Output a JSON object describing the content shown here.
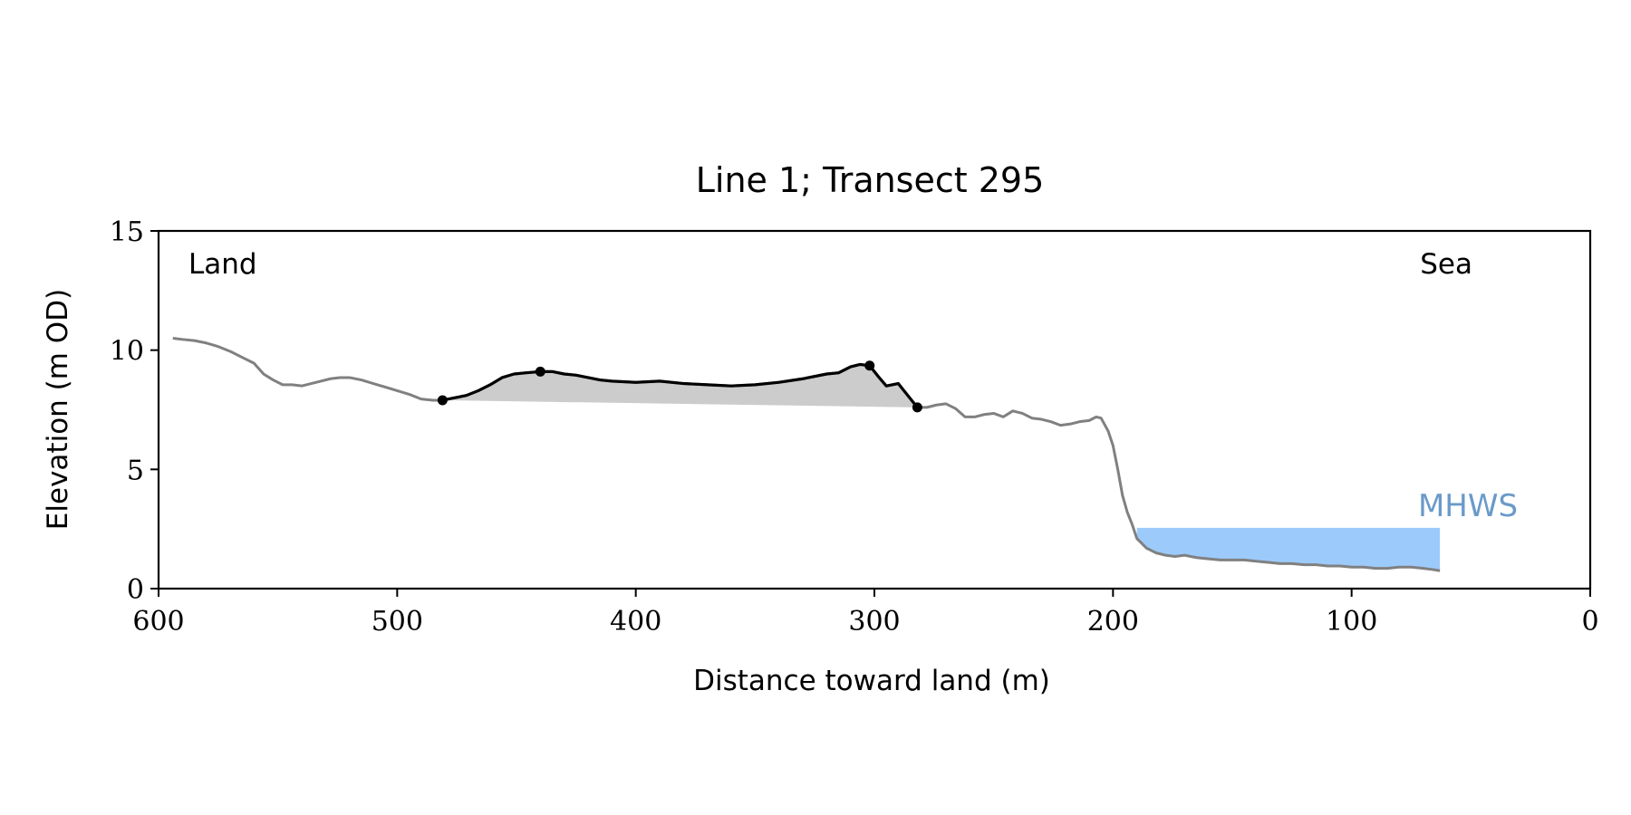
{
  "chart_data": {
    "type": "line",
    "title": "Line 1; Transect 295",
    "xlabel": "Distance toward land (m)",
    "ylabel": "Elevation (m OD)",
    "xlim": [
      600,
      0
    ],
    "ylim": [
      0,
      15
    ],
    "xticks": [
      600,
      500,
      400,
      300,
      200,
      100,
      0
    ],
    "yticks": [
      0,
      5,
      10,
      15
    ],
    "grid": false,
    "annotations": {
      "left": "Land",
      "right": "Sea",
      "mhws": "MHWS"
    },
    "colors": {
      "profile": "#808080",
      "dune": "#000000",
      "dune_fill": "#cccccc",
      "water": "#9ccbfb",
      "mhws_text": "#6a9ac9"
    },
    "mhws": {
      "elevation": 2.55,
      "x_start": 190,
      "x_end": 63
    },
    "dune_markers": [
      [
        481,
        7.9
      ],
      [
        440,
        9.1
      ],
      [
        302,
        9.35
      ],
      [
        282,
        7.6
      ]
    ],
    "profile": {
      "x": [
        594,
        590,
        585,
        580,
        575,
        570,
        565,
        560,
        556,
        552,
        548,
        544,
        540,
        536,
        532,
        528,
        524,
        520,
        515,
        510,
        505,
        500,
        495,
        490,
        485,
        481,
        476,
        471,
        466,
        461,
        456,
        451,
        446,
        440,
        435,
        430,
        425,
        420,
        415,
        410,
        400,
        390,
        380,
        370,
        360,
        350,
        340,
        330,
        320,
        315,
        310,
        306,
        302,
        298,
        295,
        290,
        286,
        282,
        278,
        274,
        270,
        266,
        262,
        258,
        254,
        250,
        246,
        242,
        238,
        234,
        230,
        226,
        222,
        218,
        214,
        210,
        207,
        205,
        202,
        200,
        198,
        196,
        194,
        192,
        190,
        186,
        182,
        178,
        174,
        170,
        165,
        160,
        155,
        150,
        145,
        140,
        135,
        130,
        125,
        120,
        115,
        110,
        105,
        100,
        95,
        90,
        85,
        80,
        75,
        70,
        66,
        63
      ],
      "y": [
        10.5,
        10.45,
        10.4,
        10.3,
        10.15,
        9.95,
        9.7,
        9.45,
        9.0,
        8.75,
        8.55,
        8.55,
        8.5,
        8.6,
        8.7,
        8.8,
        8.85,
        8.85,
        8.75,
        8.6,
        8.45,
        8.3,
        8.15,
        7.95,
        7.9,
        7.9,
        8.0,
        8.1,
        8.3,
        8.55,
        8.85,
        9.0,
        9.05,
        9.1,
        9.1,
        9.0,
        8.95,
        8.85,
        8.75,
        8.7,
        8.65,
        8.7,
        8.6,
        8.55,
        8.5,
        8.55,
        8.65,
        8.8,
        9.0,
        9.05,
        9.3,
        9.4,
        9.35,
        8.85,
        8.5,
        8.6,
        8.1,
        7.6,
        7.6,
        7.7,
        7.75,
        7.55,
        7.2,
        7.2,
        7.3,
        7.35,
        7.2,
        7.45,
        7.35,
        7.15,
        7.1,
        7.0,
        6.85,
        6.9,
        7.0,
        7.05,
        7.2,
        7.15,
        6.6,
        6.0,
        5.0,
        3.9,
        3.2,
        2.7,
        2.1,
        1.7,
        1.5,
        1.4,
        1.35,
        1.4,
        1.3,
        1.25,
        1.2,
        1.2,
        1.2,
        1.15,
        1.1,
        1.05,
        1.05,
        1.0,
        1.0,
        0.95,
        0.95,
        0.9,
        0.9,
        0.85,
        0.85,
        0.9,
        0.9,
        0.85,
        0.8,
        0.75
      ]
    }
  }
}
